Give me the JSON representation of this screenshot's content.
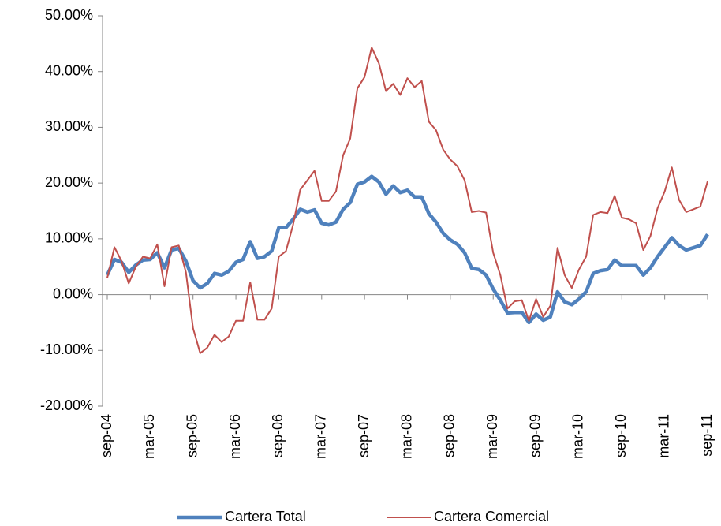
{
  "chart_data": {
    "type": "line",
    "categories": [
      "sep-04",
      null,
      null,
      null,
      null,
      null,
      "mar-05",
      null,
      null,
      null,
      null,
      null,
      "sep-05",
      null,
      null,
      null,
      null,
      null,
      "mar-06",
      null,
      null,
      null,
      null,
      null,
      "sep-06",
      null,
      null,
      null,
      null,
      null,
      "mar-07",
      null,
      null,
      null,
      null,
      null,
      "sep-07",
      null,
      null,
      null,
      null,
      null,
      "mar-08",
      null,
      null,
      null,
      null,
      null,
      "sep-08",
      null,
      null,
      null,
      null,
      null,
      "mar-09",
      null,
      null,
      null,
      null,
      null,
      "sep-09",
      null,
      null,
      null,
      null,
      null,
      "mar-10",
      null,
      null,
      null,
      null,
      null,
      "sep-10",
      null,
      null,
      null,
      null,
      null,
      "mar-11",
      null,
      null,
      null,
      null,
      null,
      "sep-11"
    ],
    "series": [
      {
        "name": "Cartera Total",
        "color": "#4f81bd",
        "width": 4.5,
        "values": [
          3.5,
          6.3,
          5.8,
          4.0,
          5.3,
          6.2,
          6.3,
          7.5,
          4.8,
          8.0,
          8.3,
          6.0,
          2.5,
          1.2,
          2.0,
          3.8,
          3.5,
          4.2,
          5.8,
          6.3,
          9.5,
          6.5,
          6.8,
          7.8,
          12.0,
          12.0,
          13.5,
          15.3,
          14.8,
          15.2,
          12.8,
          12.5,
          13.0,
          15.3,
          16.5,
          19.8,
          20.2,
          21.2,
          20.2,
          18.0,
          19.5,
          18.3,
          18.7,
          17.5,
          17.5,
          14.5,
          13.0,
          11.0,
          9.8,
          9.0,
          7.5,
          4.7,
          4.5,
          3.5,
          1.0,
          -1.0,
          -3.3,
          -3.2,
          -3.2,
          -5.0,
          -3.5,
          -4.6,
          -4.0,
          0.5,
          -1.3,
          -1.8,
          -0.8,
          0.5,
          3.8,
          4.3,
          4.5,
          6.2,
          5.2,
          5.2,
          5.2,
          3.5,
          4.8,
          6.8,
          8.5,
          10.2,
          8.8,
          8.0,
          8.4,
          8.8,
          10.8
        ]
      },
      {
        "name": "Cartera Comercial",
        "color": "#c0504d",
        "width": 2,
        "values": [
          3.0,
          8.5,
          6.0,
          2.0,
          5.0,
          6.8,
          6.5,
          9.0,
          1.5,
          8.5,
          8.8,
          4.0,
          -6.0,
          -10.5,
          -9.5,
          -7.2,
          -8.5,
          -7.5,
          -4.7,
          -4.7,
          2.2,
          -4.5,
          -4.5,
          -2.5,
          6.8,
          7.8,
          12.5,
          18.8,
          20.5,
          22.2,
          16.8,
          16.8,
          18.5,
          25.0,
          28.0,
          37.0,
          39.0,
          44.3,
          41.5,
          36.5,
          37.8,
          35.8,
          38.8,
          37.2,
          38.3,
          31.0,
          29.5,
          26.0,
          24.2,
          23.0,
          20.5,
          14.8,
          15.0,
          14.7,
          7.5,
          3.5,
          -2.5,
          -1.2,
          -1.0,
          -4.7,
          -0.8,
          -4.0,
          -2.0,
          8.4,
          3.5,
          1.2,
          4.5,
          6.8,
          14.3,
          14.8,
          14.6,
          17.7,
          13.8,
          13.5,
          12.8,
          8.0,
          10.5,
          15.5,
          18.5,
          22.8,
          17.0,
          14.8,
          15.3,
          15.8,
          20.3
        ]
      }
    ],
    "ylim": [
      -20,
      50
    ],
    "yticks": [
      {
        "value": -20,
        "label": "-20.00%"
      },
      {
        "value": -10,
        "label": "-10.00%"
      },
      {
        "value": 0,
        "label": "0.00%"
      },
      {
        "value": 10,
        "label": "10.00%"
      },
      {
        "value": 20,
        "label": "20.00%"
      },
      {
        "value": 30,
        "label": "30.00%"
      },
      {
        "value": 40,
        "label": "40.00%"
      },
      {
        "value": 50,
        "label": "50.00%"
      }
    ],
    "grid": false,
    "legend": "bottom"
  }
}
